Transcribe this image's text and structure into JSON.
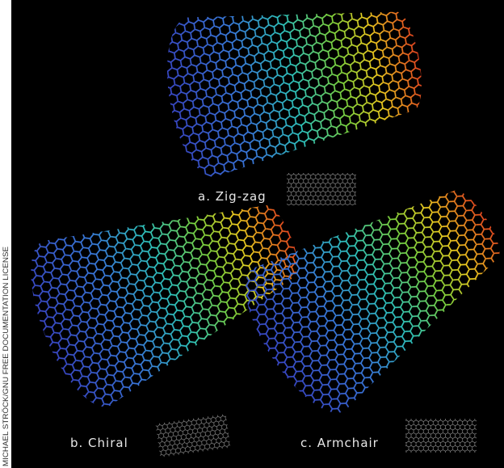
{
  "labels": {
    "zigzag": "a. Zig-zag",
    "chiral": "b. Chiral",
    "armchair": "c. Armchair"
  },
  "credit": "MICHAEL STRÖCK/GNU FREE DOCUMENTATION LICENSE"
}
